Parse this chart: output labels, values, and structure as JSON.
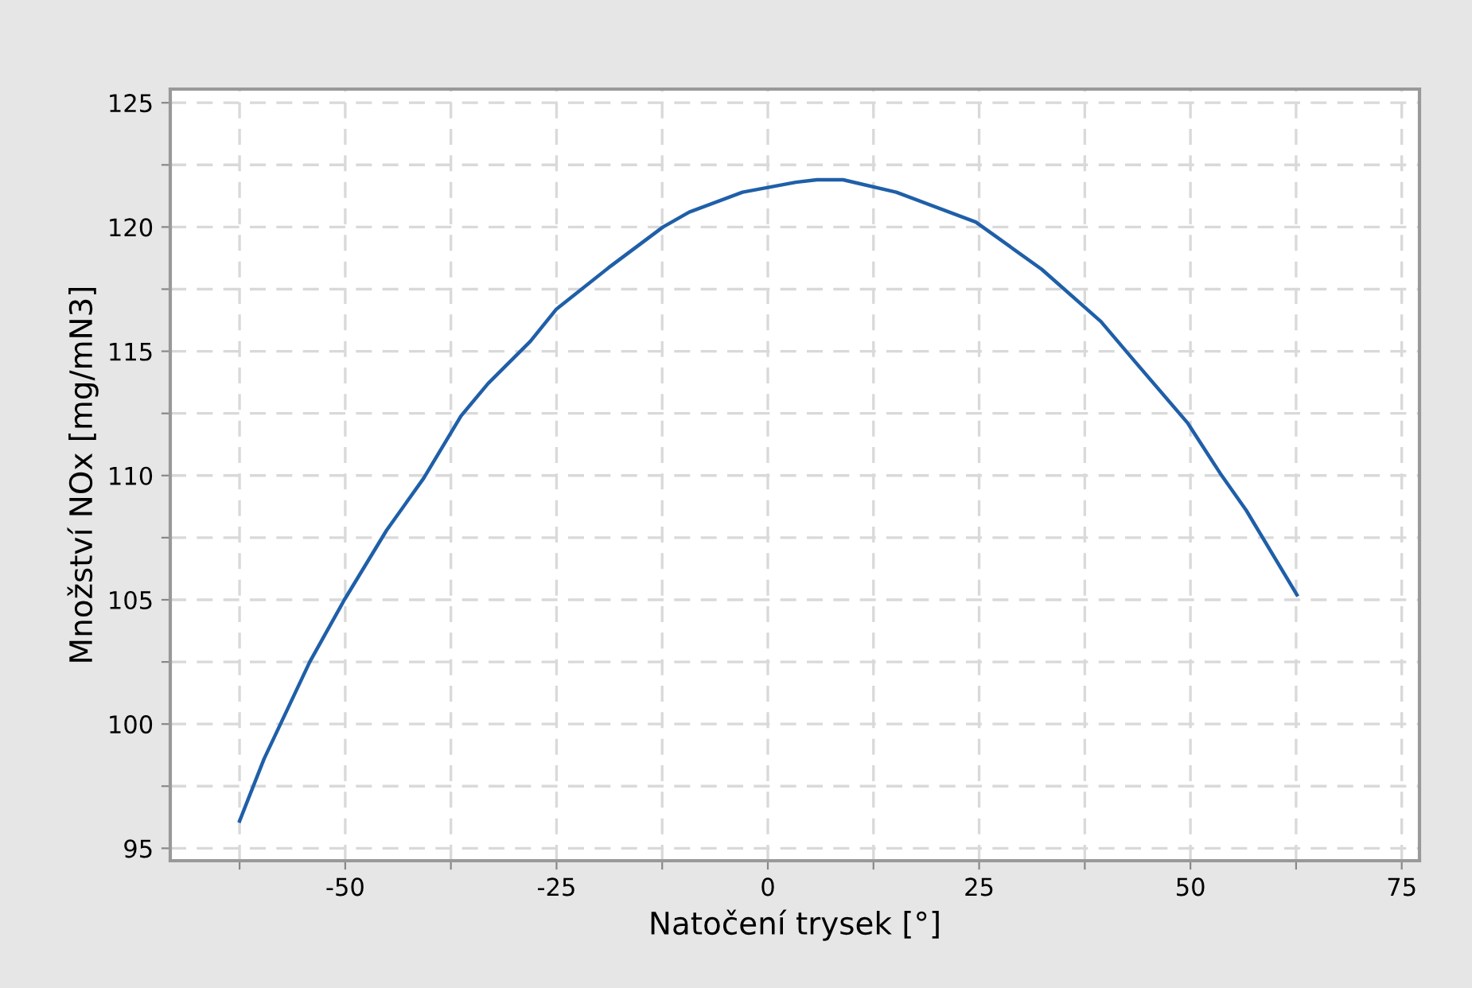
{
  "chart_data": {
    "type": "line",
    "xlabel": "Natočení trysek [°]",
    "ylabel": "Množství NOx [mg/mN3]",
    "x": [
      -62.5,
      -59.6,
      -54.2,
      -50.1,
      -45.1,
      -40.7,
      -36.3,
      -33.1,
      -28.1,
      -25.0,
      -18.7,
      -12.4,
      -9.3,
      -3.0,
      3.3,
      5.8,
      8.9,
      15.2,
      24.6,
      32.4,
      39.4,
      43.4,
      49.7,
      53.5,
      56.6,
      62.6
    ],
    "series": [
      {
        "color": "#1f5fa8",
        "values": [
          96.1,
          98.6,
          102.5,
          105.0,
          107.8,
          109.9,
          112.4,
          113.7,
          115.4,
          116.7,
          118.4,
          120.0,
          120.6,
          121.4,
          121.8,
          121.9,
          121.9,
          121.4,
          120.2,
          118.3,
          116.2,
          114.6,
          112.1,
          110.1,
          108.6,
          105.2
        ]
      }
    ],
    "xlim": [
      -70.7,
      77.1
    ],
    "ylim": [
      94.5,
      125.55
    ],
    "xticks": [
      {
        "value": -62.5,
        "label": null
      },
      -50,
      {
        "value": -37.5,
        "label": null
      },
      -25,
      {
        "value": -12.5,
        "label": null
      },
      0,
      {
        "value": 12.5,
        "label": null
      },
      25,
      {
        "value": 37.5,
        "label": null
      },
      50,
      {
        "value": 62.5,
        "label": null
      },
      75
    ],
    "yticks": [
      95,
      {
        "value": 97.5,
        "label": null
      },
      100,
      {
        "value": 102.5,
        "label": null
      },
      105,
      {
        "value": 107.5,
        "label": null
      },
      110,
      {
        "value": 112.5,
        "label": null
      },
      115,
      {
        "value": 117.5,
        "label": null
      },
      120,
      {
        "value": 122.5,
        "label": null
      },
      125
    ],
    "grid": true,
    "marker": "none",
    "line_style": "solid"
  }
}
